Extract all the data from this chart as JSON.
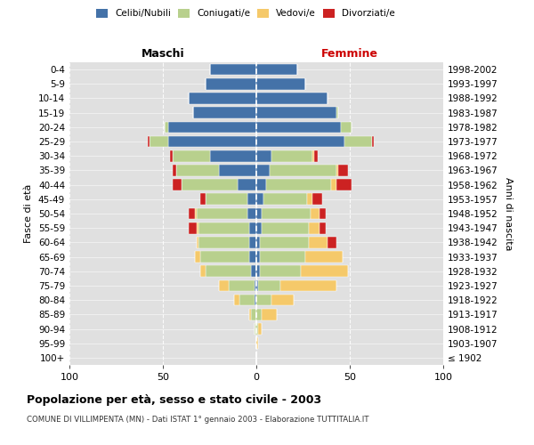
{
  "age_groups": [
    "100+",
    "95-99",
    "90-94",
    "85-89",
    "80-84",
    "75-79",
    "70-74",
    "65-69",
    "60-64",
    "55-59",
    "50-54",
    "45-49",
    "40-44",
    "35-39",
    "30-34",
    "25-29",
    "20-24",
    "15-19",
    "10-14",
    "5-9",
    "0-4"
  ],
  "birth_years": [
    "≤ 1902",
    "1903-1907",
    "1908-1912",
    "1913-1917",
    "1918-1922",
    "1923-1927",
    "1928-1932",
    "1933-1937",
    "1938-1942",
    "1943-1947",
    "1948-1952",
    "1953-1957",
    "1958-1962",
    "1963-1967",
    "1968-1972",
    "1973-1977",
    "1978-1982",
    "1983-1987",
    "1988-1992",
    "1993-1997",
    "1998-2002"
  ],
  "maschi": {
    "celibi": [
      0,
      0,
      0,
      0,
      1,
      1,
      3,
      4,
      4,
      4,
      5,
      5,
      10,
      20,
      25,
      47,
      47,
      34,
      36,
      27,
      25
    ],
    "coniugati": [
      0,
      0,
      1,
      3,
      8,
      14,
      24,
      26,
      27,
      27,
      27,
      22,
      30,
      23,
      20,
      10,
      2,
      0,
      0,
      0,
      0
    ],
    "vedovi": [
      0,
      0,
      0,
      1,
      3,
      5,
      3,
      3,
      1,
      1,
      1,
      0,
      0,
      0,
      0,
      0,
      0,
      0,
      0,
      0,
      0
    ],
    "divorziati": [
      0,
      0,
      0,
      0,
      0,
      0,
      0,
      0,
      0,
      4,
      3,
      3,
      5,
      2,
      1,
      1,
      0,
      0,
      0,
      0,
      0
    ]
  },
  "femmine": {
    "nubili": [
      0,
      0,
      0,
      0,
      0,
      1,
      2,
      2,
      2,
      3,
      3,
      4,
      5,
      7,
      8,
      47,
      45,
      43,
      38,
      26,
      22
    ],
    "coniugate": [
      0,
      0,
      1,
      3,
      8,
      12,
      22,
      24,
      26,
      25,
      26,
      23,
      35,
      36,
      22,
      15,
      6,
      1,
      0,
      0,
      0
    ],
    "vedove": [
      0,
      1,
      2,
      8,
      12,
      30,
      25,
      20,
      10,
      6,
      5,
      3,
      3,
      1,
      1,
      0,
      0,
      0,
      0,
      0,
      0
    ],
    "divorziate": [
      0,
      0,
      0,
      0,
      0,
      0,
      0,
      0,
      5,
      3,
      3,
      5,
      8,
      5,
      2,
      1,
      0,
      0,
      0,
      0,
      0
    ]
  },
  "colors": {
    "celibi_nubili": "#4472a8",
    "coniugati": "#b8d08d",
    "vedovi": "#f5c96a",
    "divorziati": "#cc2222"
  },
  "xlim": 100,
  "title": "Popolazione per età, sesso e stato civile - 2003",
  "subtitle": "COMUNE DI VILLIMPENTA (MN) - Dati ISTAT 1° gennaio 2003 - Elaborazione TUTTITALIA.IT",
  "ylabel_left": "Fasce di età",
  "ylabel_right": "Anni di nascita",
  "xlabel_left": "Maschi",
  "xlabel_right": "Femmine"
}
